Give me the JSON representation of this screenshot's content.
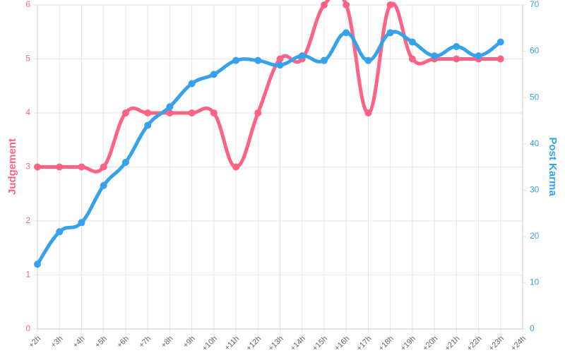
{
  "chart_data": {
    "type": "line",
    "categories": [
      "+2h",
      "+3h",
      "+4h",
      "+5h",
      "+6h",
      "+7h",
      "+8h",
      "+9h",
      "+10h",
      "+11h",
      "+12h",
      "+13h",
      "+14h",
      "+15h",
      "+16h",
      "+17h",
      "+18h",
      "+19h",
      "+20h",
      "+21h",
      "+22h",
      "+23h",
      "+24h"
    ],
    "series": [
      {
        "name": "Judgement",
        "color": "#ff6384",
        "axis": "y",
        "values": [
          3,
          3,
          3,
          3,
          4,
          4,
          4,
          4,
          4,
          3,
          4,
          5,
          5,
          6,
          6,
          4,
          6,
          5,
          5,
          5,
          5,
          5,
          null
        ]
      },
      {
        "name": "Post Karma",
        "color": "#36a2eb",
        "axis": "y2",
        "values": [
          14,
          21,
          23,
          31,
          36,
          44,
          48,
          53,
          55,
          58,
          58,
          57,
          59,
          58,
          64,
          58,
          64,
          62,
          59,
          61,
          59,
          62,
          null
        ]
      }
    ],
    "ylabel": "Judgement",
    "y2label": "Post Karma",
    "ylim": [
      0,
      6
    ],
    "yticks": [
      0,
      1,
      2,
      3,
      4,
      5,
      6
    ],
    "y2lim": [
      0,
      70
    ],
    "y2ticks": [
      0,
      10,
      20,
      30,
      40,
      50,
      60,
      70
    ],
    "grid": true
  }
}
